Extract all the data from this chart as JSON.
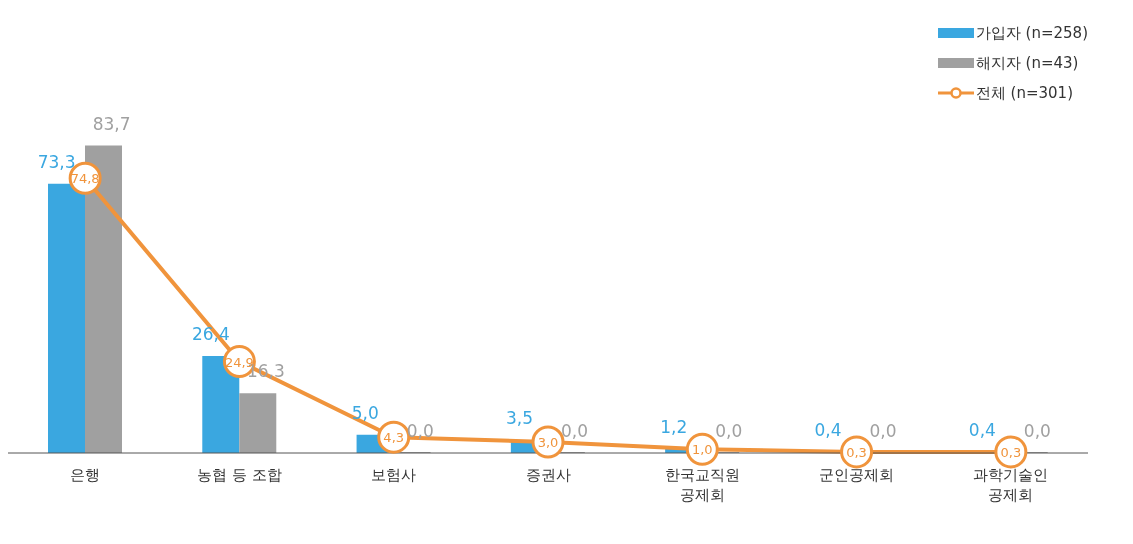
{
  "chart_data": {
    "type": "bar",
    "categories": [
      "은행",
      "농협 등 조합",
      "보험사",
      "증권사",
      "한국교직원\n공제회",
      "군인공제회",
      "과학기술인\n공제회"
    ],
    "series": [
      {
        "name": "가입자 (n=258)",
        "color": "#3aa7e0",
        "values": [
          73.3,
          26.4,
          5.0,
          3.5,
          1.2,
          0.4,
          0.4
        ],
        "value_labels": [
          "73,3",
          "26,4",
          "5,0",
          "3,5",
          "1,2",
          "0,4",
          "0,4"
        ]
      },
      {
        "name": "해지자 (n=43)",
        "color": "#a0a0a0",
        "values": [
          83.7,
          16.3,
          0.0,
          0.0,
          0.0,
          0.0,
          0.0
        ],
        "value_labels": [
          "83,7",
          "16,3",
          "0,0",
          "0,0",
          "0,0",
          "0,0",
          "0,0"
        ]
      },
      {
        "name": "전체 (n=301)",
        "type": "line",
        "color": "#f0943c",
        "marker": "circle",
        "values": [
          74.8,
          24.9,
          4.3,
          3.0,
          1.0,
          0.3,
          0.3
        ],
        "value_labels": [
          "74,8",
          "24,9",
          "4,3",
          "3,0",
          "1,0",
          "0,3",
          "0,3"
        ]
      }
    ],
    "legend": "top right",
    "tick_labels": "x"
  }
}
